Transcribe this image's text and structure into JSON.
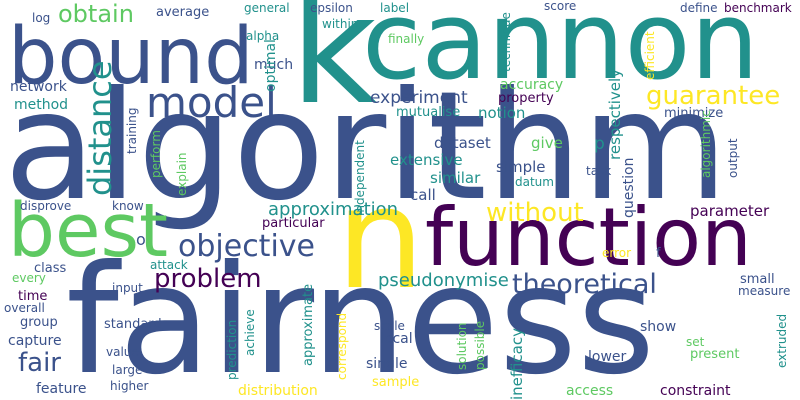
{
  "colors": {
    "background": "#ffffff",
    "palette": [
      "#440154",
      "#3b528b",
      "#21918c",
      "#5ec962",
      "#fde725"
    ]
  },
  "words": [
    "algorithm",
    "fairness",
    "cannon",
    "bound",
    "k",
    "n",
    "function",
    "best",
    "model",
    "distance",
    "obtain",
    "guarantee",
    "objective",
    "problem",
    "without",
    "theoretical",
    "approximation",
    "fair",
    "pseudonymise",
    "experiment",
    "dataset",
    "extensive",
    "similar",
    "simple",
    "call",
    "parameter",
    "network",
    "method",
    "accuracy",
    "mutualise",
    "notion",
    "property",
    "minimize",
    "respectively",
    "give",
    "p",
    "question",
    "task",
    "output",
    "algorithmic",
    "efficient",
    "define",
    "benchmark",
    "score",
    "technique",
    "finally",
    "label",
    "epsilon",
    "within",
    "general",
    "average",
    "alpha",
    "much",
    "optimal",
    "log",
    "training",
    "perform",
    "explain",
    "know",
    "disprove",
    "o",
    "particular",
    "independent",
    "datum",
    "class",
    "every",
    "attack",
    "input",
    "time",
    "overall",
    "group",
    "capture",
    "standard",
    "value",
    "large",
    "higher",
    "feature",
    "prediction",
    "achieve",
    "approximate",
    "correspond",
    "local",
    "single",
    "sample",
    "distribution",
    "scale",
    "solution",
    "possible",
    "inefficacy",
    "show",
    "lower",
    "present",
    "set",
    "access",
    "constraint",
    "small",
    "measure",
    "extruded",
    "error",
    "f"
  ]
}
